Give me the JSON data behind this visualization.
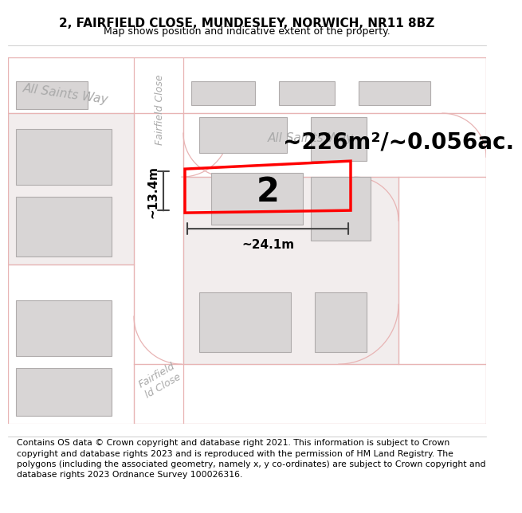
{
  "title_line1": "2, FAIRFIELD CLOSE, MUNDESLEY, NORWICH, NR11 8BZ",
  "title_line2": "Map shows position and indicative extent of the property.",
  "footer_text": "Contains OS data © Crown copyright and database right 2021. This information is subject to Crown copyright and database rights 2023 and is reproduced with the permission of HM Land Registry. The polygons (including the associated geometry, namely x, y co-ordinates) are subject to Crown copyright and database rights 2023 Ordnance Survey 100026316.",
  "area_text": "~226m²/~0.056ac.",
  "width_text": "~24.1m",
  "height_text": "~13.4m",
  "plot_number": "2",
  "map_bg": "#f2eded",
  "road_fill": "#ffffff",
  "building_color": "#d8d5d5",
  "building_outline": "#b0acac",
  "road_line_color": "#e8b4b4",
  "road_outline_color": "#c8a8a8",
  "plot_outline_color": "#ff0000",
  "dim_line_color": "#444444",
  "label_color": "#aaaaaa",
  "title_fontsize": 11,
  "subtitle_fontsize": 9,
  "area_fontsize": 20,
  "dim_fontsize": 11,
  "plot_num_fontsize": 30,
  "footer_fontsize": 7.8
}
